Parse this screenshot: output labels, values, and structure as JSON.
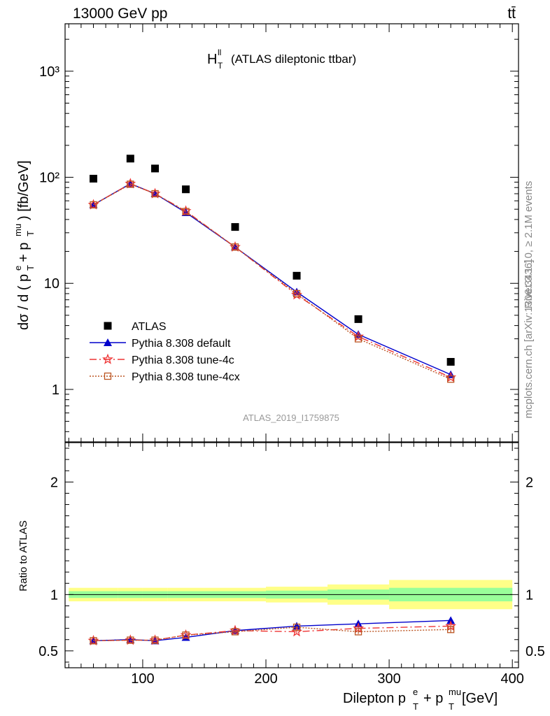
{
  "header": {
    "energy_label": "13000 GeV pp",
    "process_label": "tt̄"
  },
  "side_labels": {
    "rivet": "Rivet 3.1.10, ≥ 2.1M events",
    "mcplots": "mcplots.cern.ch [arXiv:1306.3436]"
  },
  "chart_data": [
    {
      "type": "scatter",
      "panel": "main",
      "title": "H",
      "title_sup": "ll",
      "title_sub": "T",
      "title_suffix": "(ATLAS dileptonic ttbar)",
      "watermark": "ATLAS_2019_I1759875",
      "ylabel": "dσ / d ( p_T^e + p_T^mu ) [fb/GeV]",
      "yscale": "log",
      "ylim": [
        0.32,
        2800
      ],
      "xlim": [
        37,
        405
      ],
      "y_tick_labels": [
        "1",
        "10",
        "10²",
        "10³"
      ],
      "legend_position": "bottom-left",
      "x": [
        60,
        90,
        110,
        135,
        175,
        225,
        275,
        350
      ],
      "series": [
        {
          "name": "ATLAS",
          "marker": "square",
          "color": "#000000",
          "values": [
            97,
            150,
            121,
            77,
            34,
            11.8,
            4.6,
            1.82
          ]
        },
        {
          "name": "Pythia 8.308 default",
          "marker": "triangle",
          "line": "solid",
          "color": "#0000cc",
          "values": [
            55,
            87,
            70,
            46.5,
            22,
            8.3,
            3.3,
            1.38
          ]
        },
        {
          "name": "Pythia 8.308 tune-4c",
          "marker": "star",
          "line": "dashdot",
          "color": "#ee3333",
          "values": [
            55,
            87,
            70,
            48,
            22,
            7.8,
            3.15,
            1.3
          ]
        },
        {
          "name": "Pythia 8.308 tune-4cx",
          "marker": "open-square",
          "line": "dotted",
          "color": "#bb5522",
          "values": [
            55,
            86,
            70,
            47.5,
            22,
            8.0,
            3.0,
            1.25
          ]
        }
      ]
    },
    {
      "type": "line",
      "panel": "ratio",
      "ylabel": "Ratio to ATLAS",
      "xlabel": "Dilepton p_T^e + p_T^mu [GeV]",
      "ylim": [
        0.35,
        2.35
      ],
      "xlim": [
        37,
        405
      ],
      "x_ticks": [
        100,
        200,
        300,
        400
      ],
      "y_ticks": [
        0.5,
        1,
        2
      ],
      "bands": [
        {
          "x0": 40,
          "x1": 80,
          "inner": [
            0.97,
            1.03
          ],
          "outer": [
            0.94,
            1.06
          ]
        },
        {
          "x0": 80,
          "x1": 100,
          "inner": [
            0.97,
            1.03
          ],
          "outer": [
            0.94,
            1.06
          ]
        },
        {
          "x0": 100,
          "x1": 120,
          "inner": [
            0.97,
            1.03
          ],
          "outer": [
            0.94,
            1.06
          ]
        },
        {
          "x0": 120,
          "x1": 150,
          "inner": [
            0.97,
            1.03
          ],
          "outer": [
            0.94,
            1.06
          ]
        },
        {
          "x0": 150,
          "x1": 200,
          "inner": [
            0.97,
            1.03
          ],
          "outer": [
            0.94,
            1.06
          ]
        },
        {
          "x0": 200,
          "x1": 250,
          "inner": [
            0.965,
            1.035
          ],
          "outer": [
            0.93,
            1.07
          ]
        },
        {
          "x0": 250,
          "x1": 300,
          "inner": [
            0.955,
            1.045
          ],
          "outer": [
            0.91,
            1.09
          ]
        },
        {
          "x0": 300,
          "x1": 400,
          "inner": [
            0.94,
            1.06
          ],
          "outer": [
            0.87,
            1.13
          ]
        }
      ],
      "x": [
        60,
        90,
        110,
        135,
        175,
        225,
        275,
        350
      ],
      "series": [
        {
          "name": "Pythia 8.308 default",
          "marker": "triangle",
          "line": "solid",
          "color": "#0000cc",
          "values": [
            0.59,
            0.6,
            0.59,
            0.62,
            0.68,
            0.72,
            0.74,
            0.77
          ],
          "err": [
            0.004,
            0.004,
            0.004,
            0.006,
            0.008,
            0.012,
            0.02,
            0.03
          ]
        },
        {
          "name": "Pythia 8.308 tune-4c",
          "marker": "star",
          "line": "dashdot",
          "color": "#ee3333",
          "values": [
            0.59,
            0.595,
            0.595,
            0.64,
            0.68,
            0.67,
            0.7,
            0.72
          ],
          "err": [
            0.004,
            0.004,
            0.004,
            0.006,
            0.008,
            0.012,
            0.02,
            0.03
          ]
        },
        {
          "name": "Pythia 8.308 tune-4cx",
          "marker": "open-square",
          "line": "dotted",
          "color": "#bb5522",
          "values": [
            0.59,
            0.595,
            0.595,
            0.64,
            0.67,
            0.71,
            0.67,
            0.69
          ],
          "err": [
            0.004,
            0.004,
            0.004,
            0.006,
            0.008,
            0.012,
            0.02,
            0.03
          ]
        }
      ]
    }
  ]
}
